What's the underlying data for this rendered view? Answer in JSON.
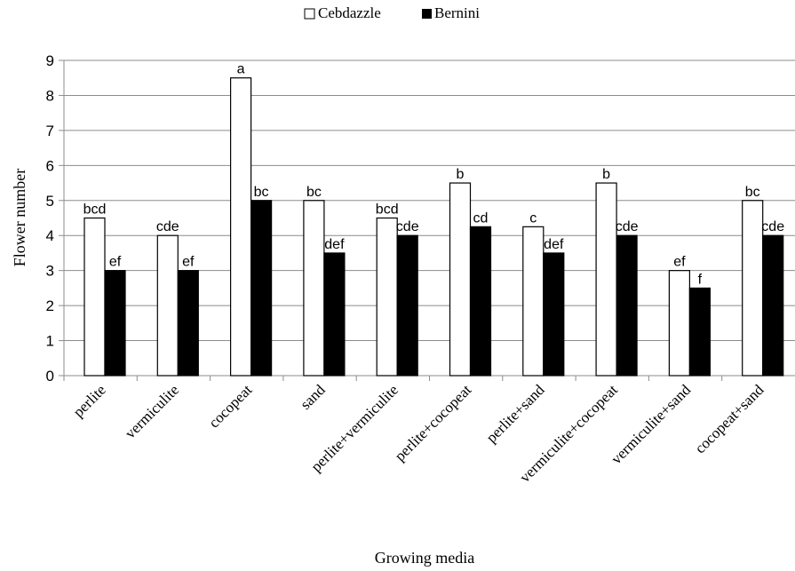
{
  "chart_data": {
    "type": "bar",
    "title": "",
    "xlabel": "Growing media",
    "ylabel": "Flower number",
    "ylim": [
      0,
      9
    ],
    "yticks": [
      "0",
      "1",
      "2",
      "3",
      "4",
      "5",
      "6",
      "7",
      "8",
      "9"
    ],
    "grid": true,
    "legend_position": "top-center",
    "categories": [
      "perlite",
      "vermiculite",
      "cocopeat",
      "sand",
      "perlite+vermiculite",
      "perlite+cocopeat",
      "perlite+sand",
      "vermiculite+cocopeat",
      "vermiculite+sand",
      "cocopeat+sand"
    ],
    "series": [
      {
        "name": "Cebdazzle",
        "color": "#ffffff",
        "values": [
          4.5,
          4.0,
          8.5,
          5.0,
          4.5,
          5.5,
          4.25,
          5.5,
          3.0,
          5.0
        ],
        "labels": [
          "bcd",
          "cde",
          "a",
          "bc",
          "bcd",
          "b",
          "c",
          "b",
          "ef",
          "bc"
        ]
      },
      {
        "name": "Bernini",
        "color": "#000000",
        "values": [
          3.0,
          3.0,
          5.0,
          3.5,
          4.0,
          4.25,
          3.5,
          4.0,
          2.5,
          4.0
        ],
        "labels": [
          "ef",
          "ef",
          "bc",
          "def",
          "cde",
          "cd",
          "def",
          "cde",
          "f",
          "cde"
        ]
      }
    ]
  }
}
